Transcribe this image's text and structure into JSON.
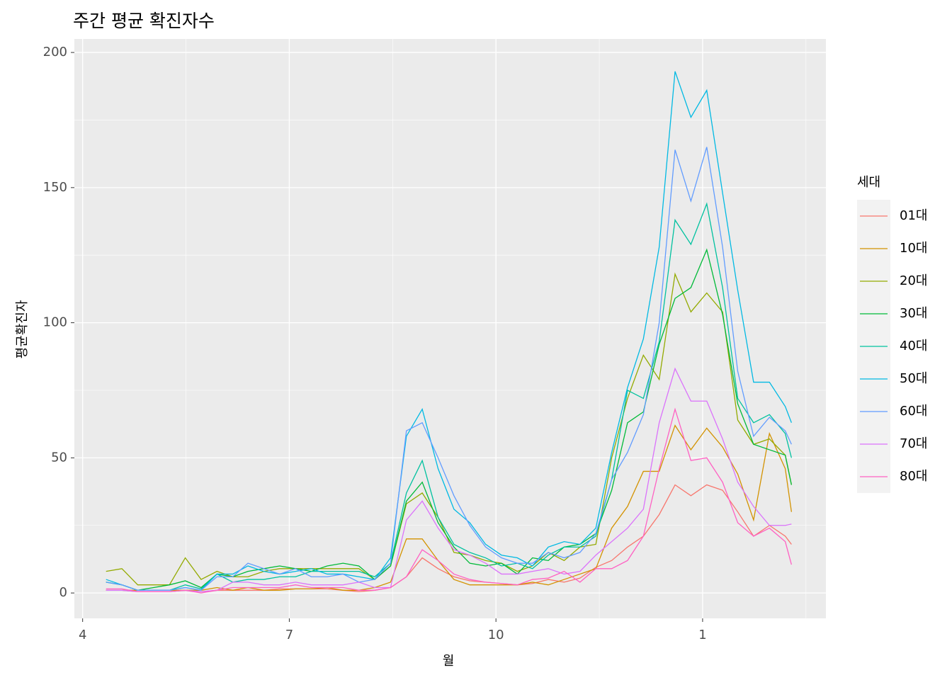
{
  "chart_data": {
    "type": "line",
    "title": "주간 평균 확진자수",
    "x_label": "월",
    "y_label": "평균확진자",
    "legend_title": "세대",
    "x": [
      4.34,
      4.57,
      4.8,
      5.03,
      5.26,
      5.49,
      5.72,
      5.95,
      6.18,
      6.4,
      6.63,
      6.86,
      7.09,
      7.32,
      7.55,
      7.78,
      8.01,
      8.24,
      8.47,
      8.7,
      8.93,
      9.16,
      9.39,
      9.62,
      9.85,
      10.08,
      10.31,
      10.53,
      10.76,
      10.99,
      11.22,
      11.45,
      11.68,
      11.91,
      12.14,
      12.37,
      12.6,
      12.83,
      13.06,
      13.29,
      13.51,
      13.74,
      13.97,
      14.2,
      14.29
    ],
    "xlim": [
      3.88,
      14.79
    ],
    "xticks": [
      4,
      7,
      10,
      {
        "value": 13,
        "label": "1"
      }
    ],
    "ylim": [
      -9.4,
      205
    ],
    "yticks": [
      0,
      50,
      100,
      150,
      200
    ],
    "grid": true,
    "legend": "right",
    "series": [
      {
        "name": "01대",
        "color": "#F8766D",
        "values": [
          1,
          1,
          0.5,
          0.5,
          0.5,
          1,
          0.5,
          1,
          1,
          1,
          1,
          1.5,
          1.5,
          1.5,
          1.5,
          1,
          0.5,
          1,
          2,
          6,
          13,
          9,
          6,
          4.5,
          4,
          3.5,
          3,
          3.5,
          5,
          4,
          5.5,
          9.5,
          12,
          17,
          21,
          29,
          40,
          36,
          40,
          38,
          30,
          21,
          25,
          21,
          18
        ]
      },
      {
        "name": "10대",
        "color": "#D39200",
        "values": [
          1,
          1,
          1,
          1,
          1,
          1,
          1,
          2,
          1,
          2,
          1,
          1,
          1.5,
          1.5,
          2,
          1,
          1,
          2,
          4,
          20,
          20,
          12,
          5,
          3,
          3,
          3,
          3,
          4,
          3,
          5,
          7,
          9,
          24,
          32,
          45,
          45,
          62,
          53,
          61,
          54,
          44,
          27,
          59,
          46,
          30
        ]
      },
      {
        "name": "20대",
        "color": "#93AA00",
        "values": [
          8,
          9,
          3,
          3,
          3,
          13,
          5,
          8,
          6,
          6,
          8,
          9,
          9,
          9,
          9,
          9,
          9,
          5,
          10,
          33,
          37,
          28,
          15,
          14,
          12,
          11,
          8,
          10,
          15,
          12,
          17,
          18,
          50,
          72,
          88,
          79,
          118,
          104,
          111,
          104,
          64,
          55,
          57,
          51,
          40
        ]
      },
      {
        "name": "30대",
        "color": "#00BA38",
        "values": [
          4,
          3,
          1,
          2,
          3,
          4.5,
          2,
          7,
          6,
          8,
          9,
          10,
          9,
          8,
          10,
          11,
          10,
          5,
          10,
          34,
          41,
          26,
          17,
          11,
          10,
          11,
          7,
          13,
          12,
          17,
          18,
          22,
          38,
          63,
          67,
          92,
          109,
          113,
          127,
          103,
          70,
          55,
          53,
          51,
          40
        ]
      },
      {
        "name": "40대",
        "color": "#00C19F",
        "values": [
          4,
          3,
          1,
          1,
          1,
          3,
          1.5,
          7,
          4,
          5,
          5,
          6,
          6,
          8,
          8,
          8,
          8,
          6,
          11,
          37,
          49,
          28,
          18,
          15,
          13,
          10,
          11,
          9,
          14,
          17,
          17,
          21,
          42,
          75,
          72,
          93,
          138,
          129,
          144,
          113,
          72,
          63,
          66,
          59,
          50
        ]
      },
      {
        "name": "50대",
        "color": "#00B9E3",
        "values": [
          5,
          3,
          1,
          1,
          1,
          2,
          1,
          7,
          7,
          10,
          8,
          7,
          8,
          9,
          7,
          7,
          6,
          5,
          13,
          58,
          68,
          46,
          31,
          26,
          18,
          14,
          13,
          10,
          17,
          19,
          18,
          24,
          52,
          76,
          94,
          128,
          193,
          176,
          186,
          148,
          112,
          78,
          78,
          69,
          63
        ]
      },
      {
        "name": "60대",
        "color": "#619CFF",
        "values": [
          4,
          3,
          1,
          1,
          1,
          2,
          1,
          6,
          6,
          11,
          9,
          7,
          9,
          6,
          6,
          7,
          4,
          5,
          11,
          60,
          63,
          50,
          36,
          25,
          17,
          13,
          11,
          11,
          15,
          13,
          15,
          22,
          42,
          52,
          66,
          100,
          164,
          145,
          165,
          128,
          82,
          58,
          65,
          60,
          55
        ]
      },
      {
        "name": "70대",
        "color": "#DB72FB",
        "values": [
          1,
          1,
          0.5,
          0.5,
          0.5,
          1,
          0.5,
          1,
          4,
          4,
          3,
          3,
          4,
          3,
          3,
          3,
          4,
          2,
          2,
          27,
          34,
          24,
          16,
          14,
          11,
          7,
          7,
          8,
          9,
          7,
          8,
          14,
          19,
          24,
          31,
          63,
          83,
          71,
          71,
          57,
          41,
          32,
          25,
          25,
          25.5
        ]
      },
      {
        "name": "80대",
        "color": "#FF61C3",
        "values": [
          1.5,
          1.5,
          0.5,
          0.5,
          0.5,
          1,
          0,
          1,
          2,
          2,
          2,
          2,
          3,
          2,
          2,
          2,
          1,
          1,
          2,
          6,
          16,
          12,
          7,
          5,
          4,
          3.5,
          3,
          5,
          5.5,
          8,
          4,
          9,
          9,
          12,
          21,
          46,
          68,
          49,
          50,
          41,
          26,
          21,
          24,
          19,
          10.5
        ]
      }
    ]
  }
}
